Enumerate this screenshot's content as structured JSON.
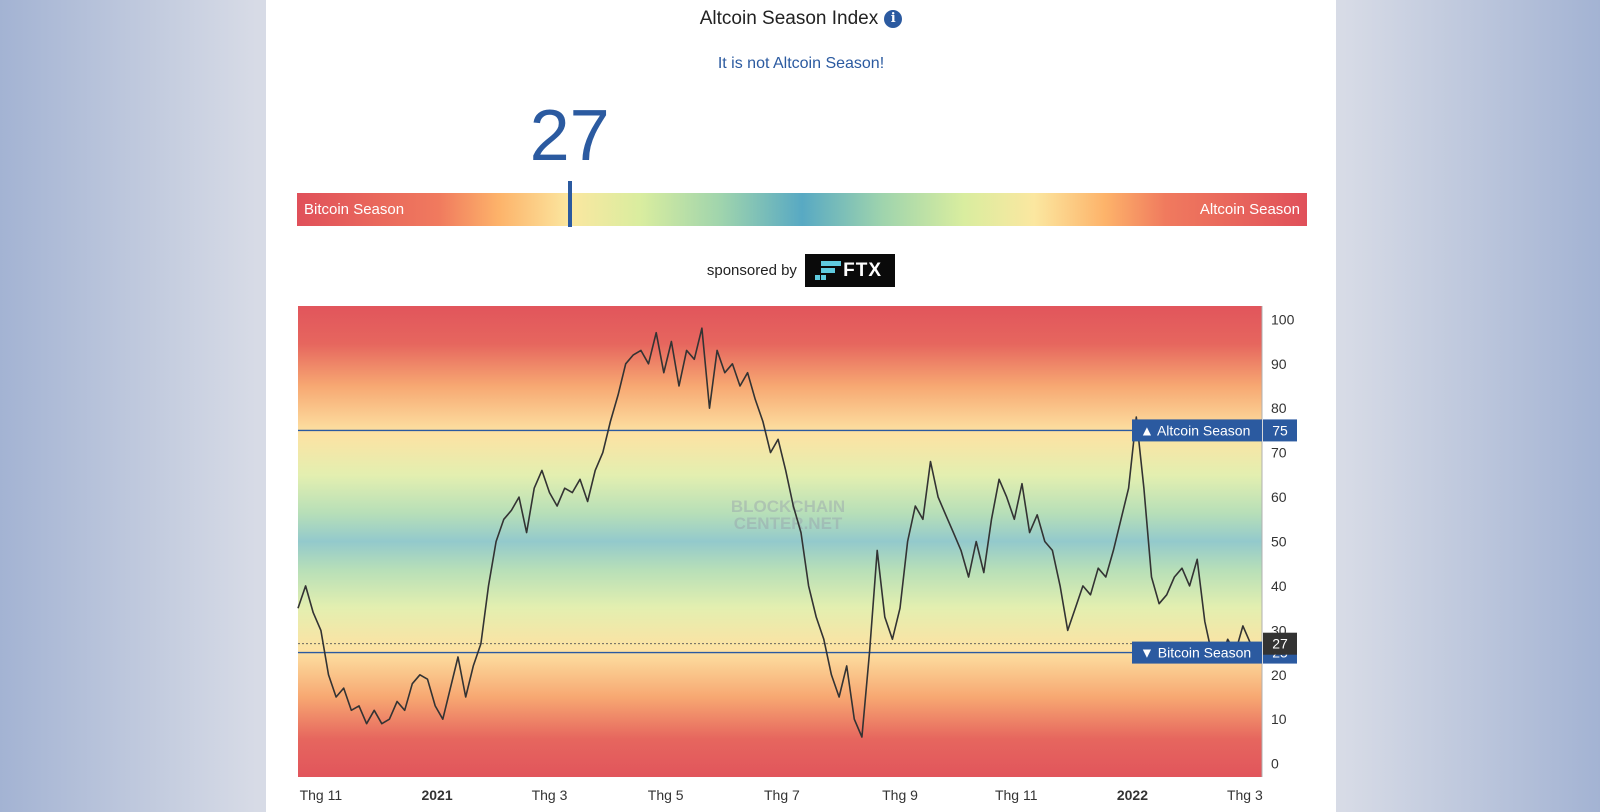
{
  "header": {
    "title": "Altcoin Season Index",
    "info_icon": "info-icon",
    "status": "It is not Altcoin Season!",
    "current_value": "27"
  },
  "gauge": {
    "left_label": "Bitcoin Season",
    "right_label": "Altcoin Season",
    "value": 27,
    "min": 0,
    "max": 100
  },
  "sponsor": {
    "text": "sponsored by",
    "brand": "FTX"
  },
  "colors": {
    "accent": "#2b5aa0",
    "season_red": "#e0505a",
    "mid_blue": "#58a9c3",
    "line": "#333333"
  },
  "chart_data": {
    "type": "line",
    "title": "",
    "watermark": [
      "BLOCKCHAIN",
      "CENTER.NET"
    ],
    "x_ticks": [
      {
        "label": "Thg 11",
        "date": "2020-11-01"
      },
      {
        "label": "2021",
        "date": "2021-01-01"
      },
      {
        "label": "Thg 3",
        "date": "2021-03-01"
      },
      {
        "label": "Thg 5",
        "date": "2021-05-01"
      },
      {
        "label": "Thg 7",
        "date": "2021-07-01"
      },
      {
        "label": "Thg 9",
        "date": "2021-09-01"
      },
      {
        "label": "Thg 11",
        "date": "2021-11-01"
      },
      {
        "label": "2022",
        "date": "2022-01-01"
      },
      {
        "label": "Thg 3",
        "date": "2022-03-01"
      }
    ],
    "y_ticks": [
      0,
      10,
      20,
      30,
      40,
      50,
      60,
      70,
      80,
      90,
      100
    ],
    "ylim": [
      -3,
      103
    ],
    "xlim": [
      "2020-10-20",
      "2022-03-10"
    ],
    "reference_lines": [
      {
        "label": "Altcoin Season",
        "value": 75,
        "direction": "up"
      },
      {
        "label": "Bitcoin Season",
        "value": 25,
        "direction": "down"
      }
    ],
    "current_marker": {
      "value": 27
    },
    "series": [
      {
        "values": [
          [
            "2020-10-20",
            35
          ],
          [
            "2020-10-24",
            40
          ],
          [
            "2020-10-28",
            34
          ],
          [
            "2020-11-01",
            30
          ],
          [
            "2020-11-05",
            20
          ],
          [
            "2020-11-09",
            15
          ],
          [
            "2020-11-13",
            17
          ],
          [
            "2020-11-17",
            12
          ],
          [
            "2020-11-21",
            13
          ],
          [
            "2020-11-25",
            9
          ],
          [
            "2020-11-29",
            12
          ],
          [
            "2020-12-03",
            9
          ],
          [
            "2020-12-07",
            10
          ],
          [
            "2020-12-11",
            14
          ],
          [
            "2020-12-15",
            12
          ],
          [
            "2020-12-19",
            18
          ],
          [
            "2020-12-23",
            20
          ],
          [
            "2020-12-27",
            19
          ],
          [
            "2020-12-31",
            13
          ],
          [
            "2021-01-04",
            10
          ],
          [
            "2021-01-08",
            17
          ],
          [
            "2021-01-12",
            24
          ],
          [
            "2021-01-16",
            15
          ],
          [
            "2021-01-20",
            22
          ],
          [
            "2021-01-24",
            27
          ],
          [
            "2021-01-28",
            40
          ],
          [
            "2021-02-01",
            50
          ],
          [
            "2021-02-05",
            55
          ],
          [
            "2021-02-09",
            57
          ],
          [
            "2021-02-13",
            60
          ],
          [
            "2021-02-17",
            52
          ],
          [
            "2021-02-21",
            62
          ],
          [
            "2021-02-25",
            66
          ],
          [
            "2021-03-01",
            61
          ],
          [
            "2021-03-05",
            58
          ],
          [
            "2021-03-09",
            62
          ],
          [
            "2021-03-13",
            61
          ],
          [
            "2021-03-17",
            64
          ],
          [
            "2021-03-21",
            59
          ],
          [
            "2021-03-25",
            66
          ],
          [
            "2021-03-29",
            70
          ],
          [
            "2021-04-02",
            77
          ],
          [
            "2021-04-06",
            83
          ],
          [
            "2021-04-10",
            90
          ],
          [
            "2021-04-14",
            92
          ],
          [
            "2021-04-18",
            93
          ],
          [
            "2021-04-22",
            90
          ],
          [
            "2021-04-26",
            97
          ],
          [
            "2021-04-30",
            88
          ],
          [
            "2021-05-04",
            95
          ],
          [
            "2021-05-08",
            85
          ],
          [
            "2021-05-12",
            93
          ],
          [
            "2021-05-16",
            91
          ],
          [
            "2021-05-20",
            98
          ],
          [
            "2021-05-24",
            80
          ],
          [
            "2021-05-28",
            93
          ],
          [
            "2021-06-01",
            88
          ],
          [
            "2021-06-05",
            90
          ],
          [
            "2021-06-09",
            85
          ],
          [
            "2021-06-13",
            88
          ],
          [
            "2021-06-17",
            82
          ],
          [
            "2021-06-21",
            77
          ],
          [
            "2021-06-25",
            70
          ],
          [
            "2021-06-29",
            73
          ],
          [
            "2021-07-03",
            66
          ],
          [
            "2021-07-07",
            58
          ],
          [
            "2021-07-11",
            52
          ],
          [
            "2021-07-15",
            40
          ],
          [
            "2021-07-19",
            33
          ],
          [
            "2021-07-23",
            28
          ],
          [
            "2021-07-27",
            20
          ],
          [
            "2021-07-31",
            15
          ],
          [
            "2021-08-04",
            22
          ],
          [
            "2021-08-08",
            10
          ],
          [
            "2021-08-12",
            6
          ],
          [
            "2021-08-16",
            25
          ],
          [
            "2021-08-20",
            48
          ],
          [
            "2021-08-24",
            33
          ],
          [
            "2021-08-28",
            28
          ],
          [
            "2021-09-01",
            35
          ],
          [
            "2021-09-05",
            50
          ],
          [
            "2021-09-09",
            58
          ],
          [
            "2021-09-13",
            55
          ],
          [
            "2021-09-17",
            68
          ],
          [
            "2021-09-21",
            60
          ],
          [
            "2021-09-25",
            56
          ],
          [
            "2021-09-29",
            52
          ],
          [
            "2021-10-03",
            48
          ],
          [
            "2021-10-07",
            42
          ],
          [
            "2021-10-11",
            50
          ],
          [
            "2021-10-15",
            43
          ],
          [
            "2021-10-19",
            55
          ],
          [
            "2021-10-23",
            64
          ],
          [
            "2021-10-27",
            60
          ],
          [
            "2021-10-31",
            55
          ],
          [
            "2021-11-04",
            63
          ],
          [
            "2021-11-08",
            52
          ],
          [
            "2021-11-12",
            56
          ],
          [
            "2021-11-16",
            50
          ],
          [
            "2021-11-20",
            48
          ],
          [
            "2021-11-24",
            40
          ],
          [
            "2021-11-28",
            30
          ],
          [
            "2021-12-02",
            35
          ],
          [
            "2021-12-06",
            40
          ],
          [
            "2021-12-10",
            38
          ],
          [
            "2021-12-14",
            44
          ],
          [
            "2021-12-18",
            42
          ],
          [
            "2021-12-22",
            48
          ],
          [
            "2021-12-26",
            55
          ],
          [
            "2021-12-30",
            62
          ],
          [
            "2022-01-03",
            78
          ],
          [
            "2022-01-07",
            62
          ],
          [
            "2022-01-11",
            42
          ],
          [
            "2022-01-15",
            36
          ],
          [
            "2022-01-19",
            38
          ],
          [
            "2022-01-23",
            42
          ],
          [
            "2022-01-27",
            44
          ],
          [
            "2022-01-31",
            40
          ],
          [
            "2022-02-04",
            46
          ],
          [
            "2022-02-08",
            32
          ],
          [
            "2022-02-12",
            24
          ],
          [
            "2022-02-16",
            23
          ],
          [
            "2022-02-20",
            28
          ],
          [
            "2022-02-24",
            25
          ],
          [
            "2022-02-28",
            31
          ],
          [
            "2022-03-04",
            27
          ]
        ]
      }
    ]
  }
}
